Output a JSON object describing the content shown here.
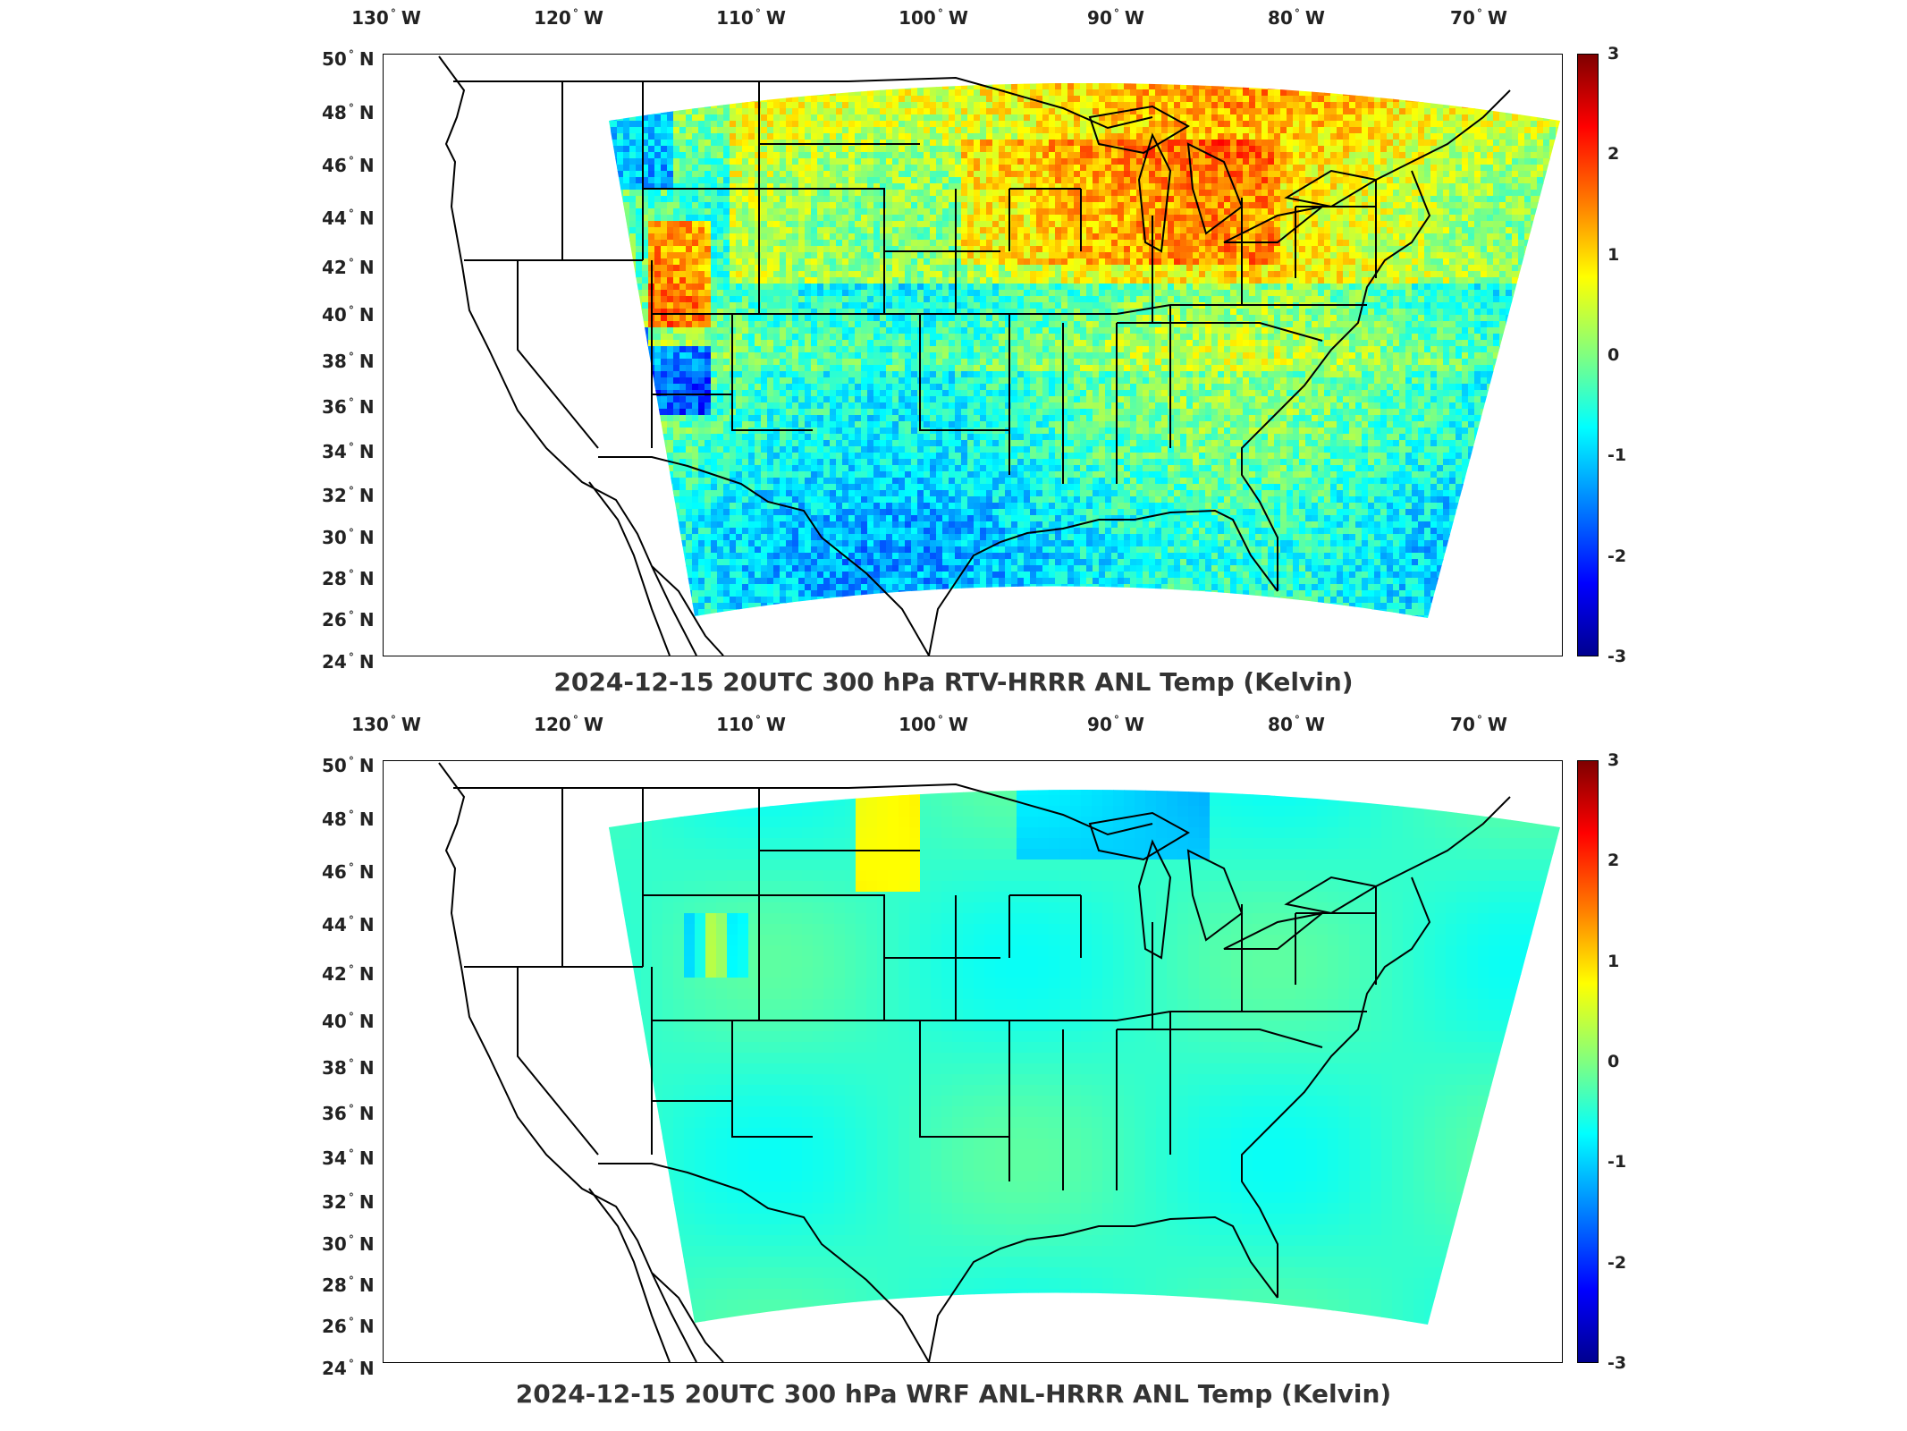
{
  "lon_ticks": [
    {
      "deg": "130",
      "hemi": "W"
    },
    {
      "deg": "120",
      "hemi": "W"
    },
    {
      "deg": "110",
      "hemi": "W"
    },
    {
      "deg": "100",
      "hemi": "W"
    },
    {
      "deg": "90",
      "hemi": "W"
    },
    {
      "deg": "80",
      "hemi": "W"
    },
    {
      "deg": "70",
      "hemi": "W"
    }
  ],
  "lat_ticks": [
    {
      "deg": "50",
      "hemi": "N"
    },
    {
      "deg": "48",
      "hemi": "N"
    },
    {
      "deg": "46",
      "hemi": "N"
    },
    {
      "deg": "44",
      "hemi": "N"
    },
    {
      "deg": "42",
      "hemi": "N"
    },
    {
      "deg": "40",
      "hemi": "N"
    },
    {
      "deg": "38",
      "hemi": "N"
    },
    {
      "deg": "36",
      "hemi": "N"
    },
    {
      "deg": "34",
      "hemi": "N"
    },
    {
      "deg": "32",
      "hemi": "N"
    },
    {
      "deg": "30",
      "hemi": "N"
    },
    {
      "deg": "28",
      "hemi": "N"
    },
    {
      "deg": "26",
      "hemi": "N"
    },
    {
      "deg": "24",
      "hemi": "N"
    }
  ],
  "colorbar": {
    "ticks": [
      "3",
      "2",
      "1",
      "0",
      "-1",
      "-2",
      "-3"
    ],
    "min": -3,
    "max": 3,
    "colormap": "jet"
  },
  "panels": [
    {
      "title": "2024-12-15 20UTC 300 hPa RTV-HRRR ANL Temp (Kelvin)",
      "field_style": "noisy"
    },
    {
      "title": "2024-12-15 20UTC 300 hPa WRF ANL-HRRR ANL Temp (Kelvin)",
      "field_style": "smooth"
    }
  ]
}
